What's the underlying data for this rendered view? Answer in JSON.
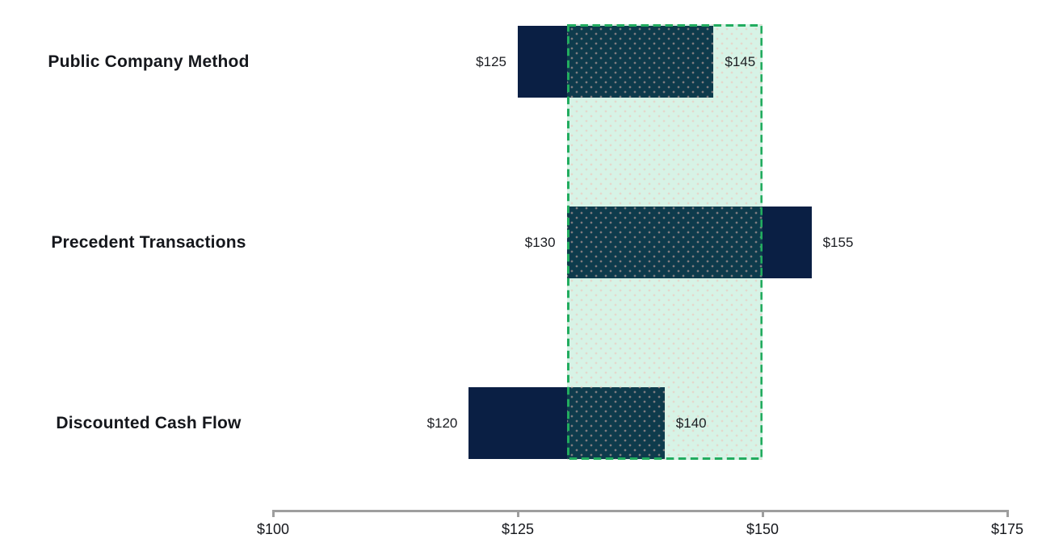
{
  "chart_data": {
    "type": "bar",
    "orientation": "horizontal-range",
    "title": "",
    "categories": [
      "Public Company Method",
      "Precedent Transactions",
      "Discounted Cash Flow"
    ],
    "bars": [
      {
        "category": "Public Company Method",
        "low": 125,
        "high": 145,
        "low_label": "$125",
        "high_label": "$145"
      },
      {
        "category": "Precedent Transactions",
        "low": 130,
        "high": 155,
        "low_label": "$130",
        "high_label": "$155"
      },
      {
        "category": "Discounted Cash Flow",
        "low": 120,
        "high": 140,
        "low_label": "$120",
        "high_label": "$140"
      }
    ],
    "highlight_band": {
      "from": 130,
      "to": 150
    },
    "x_axis": {
      "min": 100,
      "max": 175,
      "ticks": [
        {
          "value": 100,
          "label": "$100"
        },
        {
          "value": 125,
          "label": "$125"
        },
        {
          "value": 150,
          "label": "$150"
        },
        {
          "value": 175,
          "label": "$175"
        }
      ]
    },
    "legend": null,
    "grid": false,
    "colors": {
      "bar": "#0a1f44",
      "band_fill": "rgba(35,190,115,0.18)",
      "band_dot": "rgba(240,190,178,0.5)",
      "band_border": "#22ac5f",
      "axis_line": "#9e9e9e",
      "text": "#15171c"
    }
  }
}
